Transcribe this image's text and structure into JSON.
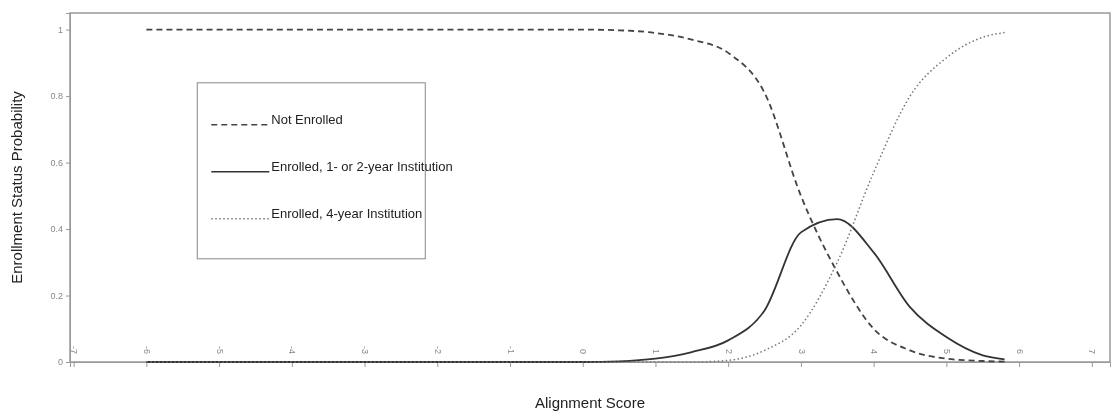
{
  "chart_data": {
    "type": "line",
    "xlabel": "Alignment Score",
    "ylabel": "Enrollment Status Probability",
    "x": [
      -6,
      -3,
      0,
      0.5,
      1,
      1.5,
      2,
      2.5,
      3,
      3.5,
      4,
      4.5,
      5,
      5.5,
      5.8
    ],
    "xlim": [
      -7.05,
      7.25
    ],
    "xticks": [
      -7,
      -6,
      -5,
      -4,
      -3,
      -2,
      -1,
      0,
      1,
      2,
      3,
      4,
      5,
      6,
      7
    ],
    "ylim": [
      0,
      1.05
    ],
    "yticks": [
      0,
      0.2,
      0.4,
      0.6,
      0.8,
      1
    ],
    "grid": false,
    "legend": "top left",
    "marker": "none",
    "series": [
      {
        "name": "Not Enrolled",
        "color": "#444444",
        "line_style": "dashed",
        "values": [
          1,
          1,
          1,
          0.998,
          0.99,
          0.97,
          0.93,
          0.81,
          0.5,
          0.27,
          0.1,
          0.035,
          0.01,
          0.003,
          0.001
        ]
      },
      {
        "name": "Enrolled, 1- or 2-year Institution",
        "color": "#333333",
        "line_style": "solid",
        "values": [
          0,
          0,
          0,
          0.002,
          0.01,
          0.03,
          0.065,
          0.155,
          0.39,
          0.43,
          0.33,
          0.165,
          0.075,
          0.02,
          0.008
        ]
      },
      {
        "name": "Enrolled, 4-year Institution",
        "color": "#777777",
        "line_style": "dotted",
        "values": [
          0,
          0,
          0,
          0,
          0,
          0,
          0.005,
          0.035,
          0.11,
          0.3,
          0.57,
          0.8,
          0.915,
          0.977,
          0.991
        ]
      }
    ]
  }
}
